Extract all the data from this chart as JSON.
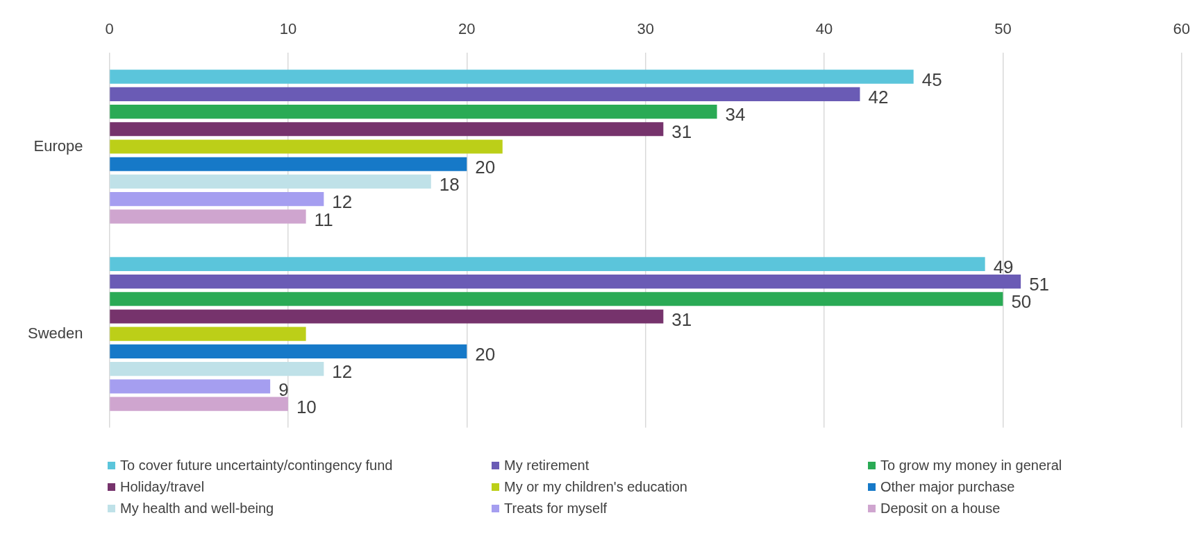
{
  "chart_data": {
    "type": "bar",
    "orientation": "horizontal",
    "categories": [
      "Europe",
      "Sweden"
    ],
    "series": [
      {
        "name": "To cover future uncertainty/contingency fund",
        "color": "#5bc5db",
        "values": [
          45,
          49
        ],
        "value_labels": [
          "45",
          "49"
        ]
      },
      {
        "name": "My retirement",
        "color": "#6a5bb5",
        "values": [
          42,
          51
        ],
        "value_labels": [
          "42",
          "51"
        ]
      },
      {
        "name": "To grow my money in general",
        "color": "#2aaa55",
        "values": [
          34,
          50
        ],
        "value_labels": [
          "34",
          "50"
        ]
      },
      {
        "name": "Holiday/travel",
        "color": "#76336c",
        "values": [
          31,
          31
        ],
        "value_labels": [
          "31",
          "31"
        ]
      },
      {
        "name": "My or my children's education",
        "color": "#bccf18",
        "values": [
          22,
          11
        ],
        "value_labels": [
          null,
          null
        ]
      },
      {
        "name": "Other major purchase",
        "color": "#1679c8",
        "values": [
          20,
          20
        ],
        "value_labels": [
          "20",
          "20"
        ]
      },
      {
        "name": "My health and well-being",
        "color": "#bfe1e8",
        "values": [
          18,
          12
        ],
        "value_labels": [
          "18",
          "12"
        ]
      },
      {
        "name": "Treats for myself",
        "color": "#a59ef0",
        "values": [
          12,
          9
        ],
        "value_labels": [
          "12",
          "9"
        ]
      },
      {
        "name": "Deposit on a house",
        "color": "#cfa5cf",
        "values": [
          11,
          10
        ],
        "value_labels": [
          "11",
          "10"
        ]
      }
    ],
    "xlim": [
      0,
      60
    ],
    "xticks": [
      0,
      10,
      20,
      30,
      40,
      50,
      60
    ],
    "grid": "x",
    "legend": "bottom"
  }
}
